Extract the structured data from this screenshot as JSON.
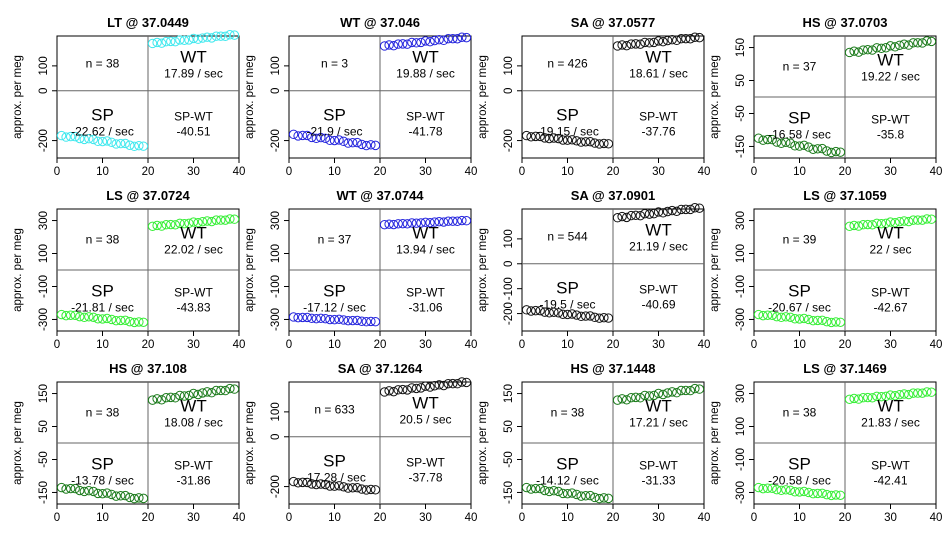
{
  "chart_data": [
    {
      "title": "LT @ 37.0449",
      "type": "scatter",
      "xlabel": "",
      "ylabel": "approx. per meg",
      "xlim": [
        0,
        40
      ],
      "ylim": [
        -270,
        220
      ],
      "yticks": [
        -200,
        0,
        100
      ],
      "xticks": [
        0,
        10,
        20,
        30,
        40
      ],
      "color": "#3ee8ee",
      "sp_range": [
        -180,
        -225
      ],
      "wt_range": [
        190,
        225
      ],
      "n": "n = 38",
      "wt": "WT",
      "wt_rate": "17.89 / sec",
      "sp": "SP",
      "sp_rate": "-22.62 / sec",
      "spwt": "SP-WT",
      "spwt_val": "-40.51"
    },
    {
      "title": "WT @ 37.046",
      "type": "scatter",
      "xlabel": "",
      "ylabel": "approx. per meg",
      "xlim": [
        0,
        40
      ],
      "ylim": [
        -270,
        220
      ],
      "yticks": [
        -200,
        0,
        100
      ],
      "xticks": [
        0,
        10,
        20,
        30,
        40
      ],
      "color": "#2222dd",
      "sp_range": [
        -175,
        -222
      ],
      "wt_range": [
        180,
        215
      ],
      "n": "n = 3",
      "wt": "WT",
      "wt_rate": "19.88 / sec",
      "sp": "SP",
      "sp_rate": "-21.9 / sec",
      "spwt": "SP-WT",
      "spwt_val": "-41.78"
    },
    {
      "title": "SA @ 37.0577",
      "type": "scatter",
      "xlabel": "",
      "ylabel": "approx. per meg",
      "xlim": [
        0,
        40
      ],
      "ylim": [
        -270,
        220
      ],
      "yticks": [
        -200,
        0,
        100
      ],
      "xticks": [
        0,
        10,
        20,
        30,
        40
      ],
      "color": "#111111",
      "sp_range": [
        -180,
        -215
      ],
      "wt_range": [
        180,
        215
      ],
      "n": "n = 426",
      "wt": "WT",
      "wt_rate": "18.61 / sec",
      "sp": "SP",
      "sp_rate": "-19.15 / sec",
      "spwt": "SP-WT",
      "spwt_val": "-37.76"
    },
    {
      "title": "HS @ 37.0703",
      "type": "scatter",
      "xlabel": "",
      "ylabel": "approx. per meg",
      "xlim": [
        0,
        40
      ],
      "ylim": [
        -185,
        185
      ],
      "yticks": [
        -150,
        -50,
        50,
        150
      ],
      "xticks": [
        0,
        10,
        20,
        30,
        40
      ],
      "color": "#1a7a1a",
      "sp_range": [
        -125,
        -170
      ],
      "wt_range": [
        135,
        170
      ],
      "n": "n = 37",
      "wt": "WT",
      "wt_rate": "19.22 / sec",
      "sp": "SP",
      "sp_rate": "-16.58 / sec",
      "spwt": "SP-WT",
      "spwt_val": "-35.8"
    },
    {
      "title": "LS @ 37.0724",
      "type": "scatter",
      "xlabel": "",
      "ylabel": "approx. per meg",
      "xlim": [
        0,
        40
      ],
      "ylim": [
        -370,
        370
      ],
      "yticks": [
        -300,
        -100,
        100,
        300
      ],
      "xticks": [
        0,
        10,
        20,
        30,
        40
      ],
      "color": "#33ee33",
      "sp_range": [
        -270,
        -320
      ],
      "wt_range": [
        265,
        310
      ],
      "n": "n = 38",
      "wt": "WT",
      "wt_rate": "22.02 / sec",
      "sp": "SP",
      "sp_rate": "-21.81 / sec",
      "spwt": "SP-WT",
      "spwt_val": "-43.83"
    },
    {
      "title": "WT @ 37.0744",
      "type": "scatter",
      "xlabel": "",
      "ylabel": "approx. per meg",
      "xlim": [
        0,
        40
      ],
      "ylim": [
        -370,
        370
      ],
      "yticks": [
        -300,
        -100,
        100,
        300
      ],
      "xticks": [
        0,
        10,
        20,
        30,
        40
      ],
      "color": "#2222dd",
      "sp_range": [
        -285,
        -315
      ],
      "wt_range": [
        275,
        300
      ],
      "n": "n = 37",
      "wt": "WT",
      "wt_rate": "13.94 / sec",
      "sp": "SP",
      "sp_rate": "-17.12 / sec",
      "spwt": "SP-WT",
      "spwt_val": "-31.06"
    },
    {
      "title": "SA @ 37.0901",
      "type": "scatter",
      "xlabel": "",
      "ylabel": "approx. per meg",
      "xlim": [
        0,
        40
      ],
      "ylim": [
        -270,
        220
      ],
      "yticks": [
        -200,
        -100,
        0,
        100
      ],
      "xticks": [
        0,
        10,
        20,
        30,
        40
      ],
      "color": "#111111",
      "sp_range": [
        -185,
        -220
      ],
      "wt_range": [
        185,
        225
      ],
      "n": "n = 544",
      "wt": "WT",
      "wt_rate": "21.19 / sec",
      "sp": "SP",
      "sp_rate": "-19.5 / sec",
      "spwt": "SP-WT",
      "spwt_val": "-40.69"
    },
    {
      "title": "LS @ 37.1059",
      "type": "scatter",
      "xlabel": "",
      "ylabel": "approx. per meg",
      "xlim": [
        0,
        40
      ],
      "ylim": [
        -370,
        370
      ],
      "yticks": [
        -300,
        -100,
        100,
        300
      ],
      "xticks": [
        0,
        10,
        20,
        30,
        40
      ],
      "color": "#33ee33",
      "sp_range": [
        -270,
        -320
      ],
      "wt_range": [
        265,
        310
      ],
      "n": "n = 39",
      "wt": "WT",
      "wt_rate": "22 / sec",
      "sp": "SP",
      "sp_rate": "-20.67 / sec",
      "spwt": "SP-WT",
      "spwt_val": "-42.67"
    },
    {
      "title": "HS @ 37.108",
      "type": "scatter",
      "xlabel": "",
      "ylabel": "approx. per meg",
      "xlim": [
        0,
        40
      ],
      "ylim": [
        -185,
        185
      ],
      "yticks": [
        -150,
        -50,
        50,
        150
      ],
      "xticks": [
        0,
        10,
        20,
        30,
        40
      ],
      "color": "#1a7a1a",
      "sp_range": [
        -135,
        -170
      ],
      "wt_range": [
        130,
        165
      ],
      "n": "n = 38",
      "wt": "WT",
      "wt_rate": "18.08 / sec",
      "sp": "SP",
      "sp_rate": "-13.78 / sec",
      "spwt": "SP-WT",
      "spwt_val": "-31.86"
    },
    {
      "title": "SA @ 37.1264",
      "type": "scatter",
      "xlabel": "",
      "ylabel": "approx. per meg",
      "xlim": [
        0,
        40
      ],
      "ylim": [
        -270,
        220
      ],
      "yticks": [
        -200,
        0,
        100
      ],
      "xticks": [
        0,
        10,
        20,
        30,
        40
      ],
      "color": "#111111",
      "sp_range": [
        -180,
        -215
      ],
      "wt_range": [
        180,
        220
      ],
      "n": "n = 633",
      "wt": "WT",
      "wt_rate": "20.5 / sec",
      "sp": "SP",
      "sp_rate": "-17.28 / sec",
      "spwt": "SP-WT",
      "spwt_val": "-37.78"
    },
    {
      "title": "HS @ 37.1448",
      "type": "scatter",
      "xlabel": "",
      "ylabel": "approx. per meg",
      "xlim": [
        0,
        40
      ],
      "ylim": [
        -185,
        185
      ],
      "yticks": [
        -150,
        -50,
        50,
        150
      ],
      "xticks": [
        0,
        10,
        20,
        30,
        40
      ],
      "color": "#1a7a1a",
      "sp_range": [
        -135,
        -170
      ],
      "wt_range": [
        130,
        165
      ],
      "n": "n = 38",
      "wt": "WT",
      "wt_rate": "17.21 / sec",
      "sp": "SP",
      "sp_rate": "-14.12 / sec",
      "spwt": "SP-WT",
      "spwt_val": "-31.33"
    },
    {
      "title": "LS @ 37.1469",
      "type": "scatter",
      "xlabel": "",
      "ylabel": "approx. per meg",
      "xlim": [
        0,
        40
      ],
      "ylim": [
        -370,
        370
      ],
      "yticks": [
        -300,
        -100,
        100,
        300
      ],
      "xticks": [
        0,
        10,
        20,
        30,
        40
      ],
      "color": "#33ee33",
      "sp_range": [
        -270,
        -320
      ],
      "wt_range": [
        265,
        310
      ],
      "n": "n = 38",
      "wt": "WT",
      "wt_rate": "21.83 / sec",
      "sp": "SP",
      "sp_rate": "-20.58 / sec",
      "spwt": "SP-WT",
      "spwt_val": "-42.41"
    }
  ]
}
